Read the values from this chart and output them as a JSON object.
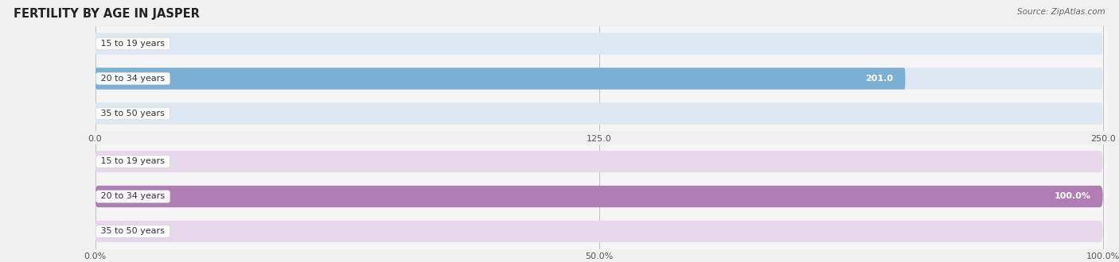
{
  "title": "FERTILITY BY AGE IN JASPER",
  "source": "Source: ZipAtlas.com",
  "top_chart": {
    "categories": [
      "15 to 19 years",
      "20 to 34 years",
      "35 to 50 years"
    ],
    "values": [
      0.0,
      201.0,
      0.0
    ],
    "max_val": 250.0,
    "xticks": [
      0.0,
      125.0,
      250.0
    ],
    "xtick_labels": [
      "0.0",
      "125.0",
      "250.0"
    ],
    "bar_color": "#7bafd4",
    "bar_bg_color": "#dde8f3",
    "value_label_inside_color": "#ffffff",
    "value_label_outside_color": "#555555"
  },
  "bottom_chart": {
    "categories": [
      "15 to 19 years",
      "20 to 34 years",
      "35 to 50 years"
    ],
    "values": [
      0.0,
      100.0,
      0.0
    ],
    "max_val": 100.0,
    "xticks": [
      0.0,
      50.0,
      100.0
    ],
    "xtick_labels": [
      "0.0%",
      "50.0%",
      "100.0%"
    ],
    "bar_color": "#b07db5",
    "bar_bg_color": "#e8d8ec",
    "value_label_inside_color": "#ffffff",
    "value_label_outside_color": "#555555"
  },
  "bar_height": 0.62,
  "label_fontsize": 8.0,
  "tick_fontsize": 8.0,
  "title_fontsize": 10.5,
  "category_fontsize": 8.0,
  "fig_bg_color": "#f0f0f0",
  "chart_bg_color": "#f5f5f5"
}
